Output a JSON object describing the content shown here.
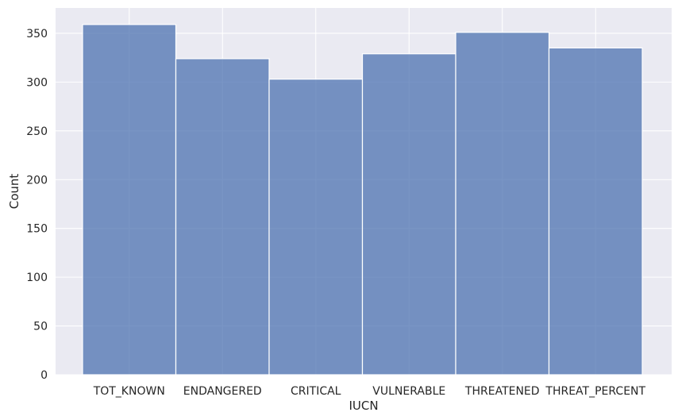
{
  "chart_data": {
    "type": "bar",
    "title": "",
    "xlabel": "IUCN",
    "ylabel": "Count",
    "categories": [
      "TOT_KNOWN",
      "ENDANGERED",
      "CRITICAL",
      "VULNERABLE",
      "THREATENED",
      "THREAT_PERCENT"
    ],
    "values": [
      359,
      324,
      303,
      329,
      351,
      335
    ],
    "ylim": [
      0,
      376
    ],
    "yticks": [
      0,
      50,
      100,
      150,
      200,
      250,
      300,
      350
    ],
    "ytick_labels": [
      "0",
      "50",
      "100",
      "150",
      "200",
      "250",
      "300",
      "350"
    ],
    "grid": true,
    "colors": {
      "bar": "#4c72b0",
      "bar_edge": "#ffffff",
      "background": "#eaeaf2",
      "grid": "#ffffff",
      "text": "#262626"
    }
  }
}
